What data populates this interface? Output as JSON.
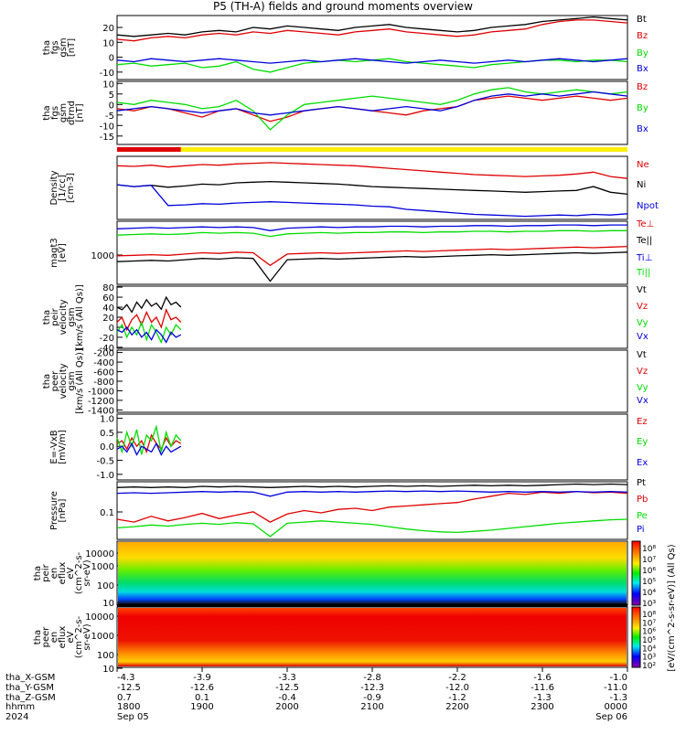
{
  "title": "P5 (TH-A) fields and ground moments overview",
  "colors": {
    "black": "#000000",
    "red": "#e00000",
    "green": "#00dd00",
    "blue": "#0000dd",
    "yellow": "#ffee00"
  },
  "chart_data": [
    {
      "type": "line",
      "ylabel": [
        "tha",
        "fgs",
        "gsm",
        "[nT]"
      ],
      "yticks": [
        "20",
        "10",
        "0",
        "-10"
      ],
      "ylim": [
        -15,
        28
      ],
      "series": [
        {
          "name": "Bt",
          "color": "black",
          "values": [
            15,
            14,
            15,
            16,
            15,
            17,
            18,
            17,
            20,
            19,
            21,
            20,
            19,
            18,
            20,
            21,
            22,
            20,
            19,
            18,
            17,
            18,
            20,
            21,
            22,
            24,
            25,
            26,
            27,
            26,
            25
          ]
        },
        {
          "name": "Bz",
          "color": "red",
          "values": [
            12,
            11,
            13,
            14,
            13,
            15,
            16,
            15,
            17,
            16,
            18,
            17,
            16,
            15,
            17,
            18,
            19,
            17,
            16,
            15,
            14,
            15,
            17,
            18,
            19,
            22,
            24,
            25,
            25,
            24,
            23
          ]
        },
        {
          "name": "By",
          "color": "green",
          "values": [
            -5,
            -4,
            -6,
            -5,
            -4,
            -7,
            -6,
            -3,
            -8,
            -10,
            -7,
            -4,
            -3,
            -2,
            -3,
            -2,
            -1,
            -3,
            -4,
            -5,
            -6,
            -7,
            -5,
            -4,
            -3,
            -2,
            -2,
            -3,
            -2,
            -2,
            -3
          ]
        },
        {
          "name": "Bx",
          "color": "blue",
          "values": [
            -2,
            -3,
            -1,
            -2,
            -3,
            -2,
            -1,
            -2,
            -3,
            -4,
            -3,
            -2,
            -3,
            -2,
            -1,
            -2,
            -3,
            -4,
            -3,
            -2,
            -3,
            -4,
            -3,
            -2,
            -3,
            -2,
            -1,
            -2,
            -3,
            -2,
            -1
          ]
        }
      ]
    },
    {
      "type": "line",
      "ylabel": [
        "tha",
        "fgs",
        "gsm",
        "dtrnd",
        "[nT]"
      ],
      "yticks": [
        "10",
        "5",
        "0",
        "-5",
        "-10",
        "-15"
      ],
      "ylim": [
        -19,
        11
      ],
      "series": [
        {
          "name": "Bz",
          "color": "red",
          "values": [
            -2,
            -3,
            -1,
            -2,
            -4,
            -6,
            -3,
            -2,
            -5,
            -8,
            -6,
            -3,
            -2,
            -1,
            -2,
            -3,
            -4,
            -5,
            -3,
            -2,
            -1,
            2,
            3,
            4,
            3,
            2,
            3,
            4,
            3,
            2,
            3
          ]
        },
        {
          "name": "By",
          "color": "green",
          "values": [
            1,
            0,
            2,
            1,
            0,
            -2,
            -1,
            2,
            -3,
            -12,
            -5,
            0,
            1,
            2,
            3,
            4,
            3,
            2,
            1,
            0,
            2,
            5,
            7,
            8,
            6,
            5,
            6,
            7,
            6,
            5,
            6
          ]
        },
        {
          "name": "Bx",
          "color": "blue",
          "values": [
            -3,
            -2,
            -1,
            -2,
            -3,
            -4,
            -3,
            -2,
            -4,
            -5,
            -4,
            -3,
            -2,
            -1,
            -2,
            -3,
            -2,
            -1,
            -2,
            -3,
            -1,
            2,
            4,
            5,
            4,
            5,
            4,
            5,
            6,
            5,
            4
          ]
        }
      ]
    },
    {
      "type": "line",
      "ylabel": [
        "Density",
        "[1/cc]",
        "[cm-3]"
      ],
      "yticks": [],
      "ylim": [
        0,
        10
      ],
      "series": [
        {
          "name": "Ne",
          "color": "red",
          "values": [
            8.5,
            8.4,
            8.6,
            8.3,
            8.5,
            8.7,
            8.6,
            8.8,
            8.9,
            9.0,
            8.9,
            8.8,
            8.7,
            8.6,
            8.5,
            8.3,
            8.1,
            7.9,
            7.7,
            7.5,
            7.3,
            7.1,
            7.0,
            6.9,
            6.8,
            6.9,
            7.0,
            7.2,
            7.5,
            6.8,
            6.5
          ]
        },
        {
          "name": "Ni",
          "color": "black",
          "values": [
            5.5,
            5.2,
            5.4,
            5.1,
            5.3,
            5.6,
            5.5,
            5.8,
            5.9,
            6.0,
            5.9,
            5.8,
            5.7,
            5.6,
            5.4,
            5.2,
            5.1,
            5.0,
            4.9,
            4.8,
            4.7,
            4.6,
            4.5,
            4.4,
            4.3,
            4.4,
            4.5,
            4.6,
            5.2,
            4.3,
            4.0
          ]
        },
        {
          "name": "Npot",
          "color": "blue",
          "values": [
            5.5,
            5.2,
            5.4,
            2.2,
            2.3,
            2.5,
            2.4,
            2.6,
            2.7,
            2.8,
            2.7,
            2.6,
            2.5,
            2.4,
            2.3,
            2.1,
            2.0,
            1.6,
            1.4,
            1.2,
            1.0,
            0.8,
            0.7,
            0.6,
            0.5,
            0.6,
            0.7,
            0.6,
            0.8,
            0.7,
            0.9
          ]
        }
      ]
    },
    {
      "type": "line",
      "ylabel": [
        "magt3",
        "[eV]"
      ],
      "yticks": [
        "1000"
      ],
      "ylim": [
        0,
        10
      ],
      "series": [
        {
          "name": "Te⊥",
          "color": "red",
          "values": [
            4.5,
            4.6,
            4.7,
            4.6,
            4.8,
            5.0,
            4.9,
            5.1,
            5.0,
            3.0,
            4.8,
            4.9,
            5.0,
            4.9,
            5.0,
            5.1,
            5.2,
            5.3,
            5.2,
            5.3,
            5.4,
            5.5,
            5.6,
            5.5,
            5.6,
            5.7,
            5.8,
            5.9,
            5.8,
            5.9,
            6.0
          ]
        },
        {
          "name": "Te||",
          "color": "black",
          "values": [
            3.6,
            3.7,
            3.8,
            3.7,
            3.9,
            4.1,
            4.0,
            4.2,
            4.1,
            0.5,
            3.9,
            4.0,
            4.1,
            4.0,
            4.1,
            4.2,
            4.3,
            4.4,
            4.3,
            4.4,
            4.5,
            4.6,
            4.7,
            4.6,
            4.7,
            4.8,
            4.9,
            5.0,
            4.9,
            5.0,
            5.1
          ]
        },
        {
          "name": "Ti⊥",
          "color": "blue",
          "values": [
            8.8,
            8.9,
            9.0,
            8.9,
            9.0,
            9.1,
            9.0,
            9.1,
            9.0,
            8.5,
            8.9,
            9.0,
            9.1,
            9.0,
            9.1,
            9.1,
            9.2,
            9.2,
            9.1,
            9.2,
            9.2,
            9.3,
            9.3,
            9.2,
            9.3,
            9.3,
            9.4,
            9.4,
            9.3,
            9.4,
            9.4
          ]
        },
        {
          "name": "Ti||",
          "color": "green",
          "values": [
            7.8,
            7.9,
            8.0,
            7.9,
            8.0,
            8.2,
            8.1,
            8.2,
            8.1,
            7.6,
            8.0,
            8.1,
            8.2,
            8.1,
            8.2,
            8.2,
            8.3,
            8.3,
            8.2,
            8.3,
            8.3,
            8.4,
            8.4,
            8.3,
            8.4,
            8.4,
            8.5,
            8.5,
            8.4,
            8.5,
            8.5
          ]
        }
      ]
    },
    {
      "type": "line",
      "ylabel": [
        "tha",
        "peir",
        "velocity",
        "gsm",
        "[km/s (All Qs)]"
      ],
      "yticks": [
        "80",
        "60",
        "40",
        "20",
        "0",
        "-20",
        "-40"
      ],
      "ylim": [
        -42,
        82
      ],
      "series": [
        {
          "name": "Vt",
          "color": "black",
          "values": [
            40,
            35,
            45,
            30,
            50,
            38,
            55,
            42,
            48,
            36,
            60,
            45,
            50,
            40
          ]
        },
        {
          "name": "Vz",
          "color": "red",
          "values": [
            10,
            20,
            -5,
            15,
            25,
            5,
            30,
            10,
            20,
            0,
            35,
            15,
            20,
            10
          ]
        },
        {
          "name": "Vy",
          "color": "green",
          "values": [
            -10,
            5,
            -20,
            0,
            -15,
            10,
            -25,
            5,
            -10,
            -30,
            0,
            -15,
            5,
            -5
          ]
        },
        {
          "name": "Vx",
          "color": "blue",
          "values": [
            -5,
            -10,
            0,
            -15,
            -5,
            -20,
            -10,
            -25,
            -5,
            -15,
            -30,
            -10,
            -20,
            -15
          ]
        }
      ]
    },
    {
      "type": "line",
      "ylabel": [
        "tha",
        "peer",
        "velocity",
        "gsm",
        "[km/s (All Qs)]"
      ],
      "yticks": [
        "-200",
        "-400",
        "-600",
        "-800",
        "-1000",
        "-1200",
        "-1400"
      ],
      "ylim": [
        -1450,
        -150
      ],
      "legend": [
        "Vt",
        "Vz",
        "Vy",
        "Vx"
      ],
      "series": []
    },
    {
      "type": "line",
      "ylabel": [
        "E=-VxB",
        "[mV/m]"
      ],
      "yticks": [
        "1.0",
        "0.5",
        "0.0",
        "-0.5",
        "-1.0"
      ],
      "ylim": [
        -1.2,
        1.15
      ],
      "series": [
        {
          "name": "Ez",
          "color": "red",
          "values": [
            0.1,
            0.2,
            -0.1,
            0.3,
            0.0,
            0.2,
            -0.2,
            0.4,
            0.1,
            -0.1,
            0.3,
            0.0,
            0.2,
            0.1
          ]
        },
        {
          "name": "Ey",
          "color": "green",
          "values": [
            0.3,
            -0.2,
            0.5,
            0.0,
            0.6,
            -0.3,
            0.4,
            0.2,
            0.7,
            -0.2,
            0.5,
            0.0,
            0.4,
            0.2
          ]
        },
        {
          "name": "Ex",
          "color": "blue",
          "values": [
            -0.1,
            0.0,
            -0.2,
            0.1,
            -0.3,
            0.0,
            -0.1,
            -0.2,
            0.1,
            -0.3,
            0.0,
            -0.2,
            -0.1,
            0.0
          ]
        }
      ]
    },
    {
      "type": "line",
      "ylabel": [
        "Pressure",
        "[nPa]"
      ],
      "yticks": [
        "0.1"
      ],
      "ylim": [
        0,
        10
      ],
      "series": [
        {
          "name": "Pt",
          "color": "black",
          "values": [
            9.0,
            9.1,
            9.0,
            9.1,
            9.0,
            9.2,
            9.1,
            9.2,
            9.1,
            9.0,
            9.1,
            9.2,
            9.1,
            9.2,
            9.1,
            9.2,
            9.3,
            9.2,
            9.3,
            9.2,
            9.3,
            9.4,
            9.3,
            9.4,
            9.3,
            9.4,
            9.5,
            9.6,
            9.5,
            9.6,
            9.5
          ]
        },
        {
          "name": "Pb",
          "color": "red",
          "values": [
            3.5,
            3.0,
            4.0,
            3.2,
            3.8,
            4.5,
            3.6,
            4.2,
            4.8,
            3.0,
            4.4,
            5.0,
            4.6,
            5.2,
            5.4,
            5.0,
            5.6,
            5.8,
            6.0,
            6.2,
            6.4,
            7.0,
            7.5,
            8.0,
            7.8,
            8.2,
            8.0,
            8.3,
            8.1,
            8.2,
            8.0
          ]
        },
        {
          "name": "Pe",
          "color": "green",
          "values": [
            2.0,
            2.2,
            2.5,
            2.3,
            2.6,
            2.8,
            2.6,
            2.9,
            2.7,
            0.5,
            2.8,
            3.0,
            3.2,
            3.0,
            2.8,
            2.6,
            2.2,
            1.8,
            1.5,
            1.3,
            1.2,
            1.4,
            1.6,
            1.9,
            2.2,
            2.5,
            2.8,
            3.0,
            3.2,
            3.4,
            3.5
          ]
        },
        {
          "name": "Pi",
          "color": "blue",
          "values": [
            8.0,
            8.1,
            8.0,
            8.1,
            8.2,
            8.3,
            8.2,
            8.3,
            8.2,
            7.5,
            8.2,
            8.3,
            8.2,
            8.3,
            8.2,
            8.3,
            8.4,
            8.3,
            8.4,
            8.3,
            8.4,
            8.3,
            8.2,
            8.3,
            8.2,
            8.3,
            8.2,
            8.3,
            8.2,
            8.3,
            8.2
          ]
        }
      ]
    },
    {
      "type": "heatmap",
      "ylabel": [
        "tha",
        "peir",
        "en",
        "eflux",
        "eV",
        "(cm^2-s-",
        "sr-eV)"
      ],
      "yticks": [
        "10000",
        "1000",
        "100",
        "10"
      ],
      "colorbar_ticks": [
        "10⁸",
        "10⁷",
        "10⁶",
        "10⁵",
        "10⁴",
        "10³"
      ]
    },
    {
      "type": "heatmap",
      "ylabel": [
        "tha",
        "peer",
        "en",
        "eflux",
        "eV",
        "(cm^2-s-",
        "sr-eV)"
      ],
      "yticks": [
        "10000",
        "1000",
        "100",
        "10"
      ],
      "colorbar_ticks": [
        "10⁸",
        "10⁷",
        "10⁶",
        "10⁵",
        "10⁴",
        "10³",
        "10²"
      ]
    }
  ],
  "colorbar_label": "[eV/(cm^2-s-sr-eV)] (All Qs)",
  "xaxis": {
    "labels": [
      "tha_X-GSM",
      "tha_Y-GSM",
      "tha_Z-GSM",
      "hhmm",
      "2024"
    ],
    "columns": [
      {
        "x": -4.3,
        "rows": [
          "-4.3",
          "-12.5",
          "0.7",
          "1800",
          "Sep 05"
        ]
      },
      {
        "x": -3.9,
        "rows": [
          "-3.9",
          "-12.6",
          "0.1",
          "1900",
          ""
        ]
      },
      {
        "x": -3.3,
        "rows": [
          "-3.3",
          "-12.5",
          "-0.4",
          "2000",
          ""
        ]
      },
      {
        "x": -2.8,
        "rows": [
          "-2.8",
          "-12.3",
          "-0.9",
          "2100",
          ""
        ]
      },
      {
        "x": -2.2,
        "rows": [
          "-2.2",
          "-12.0",
          "-1.2",
          "2200",
          ""
        ]
      },
      {
        "x": -1.6,
        "rows": [
          "-1.6",
          "-11.6",
          "-1.3",
          "2300",
          ""
        ]
      },
      {
        "x": -1.0,
        "rows": [
          "-1.0",
          "-11.0",
          "-1.3",
          "0000",
          "Sep 06"
        ]
      }
    ]
  },
  "mode_bar": {
    "segments": [
      {
        "color": "red",
        "fraction": 0.125
      },
      {
        "color": "yellow",
        "fraction": 0.875
      }
    ]
  }
}
